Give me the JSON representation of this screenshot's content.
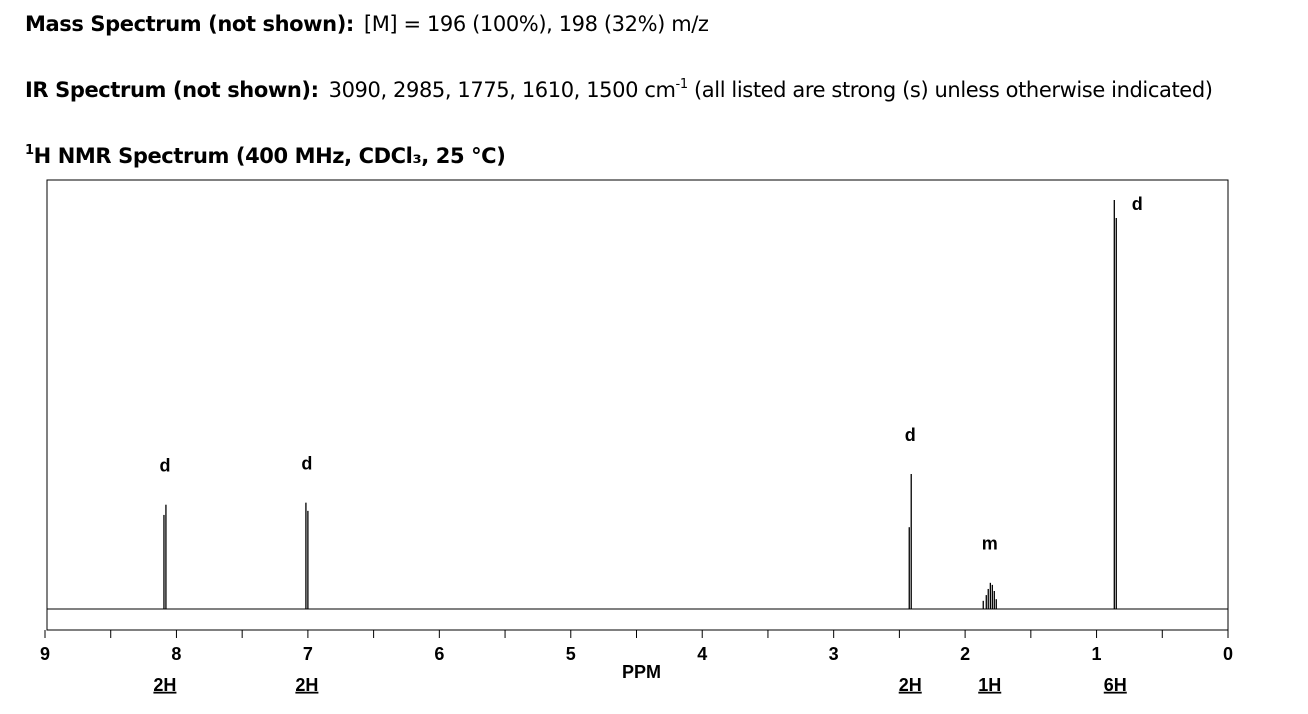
{
  "header": {
    "mass": {
      "label": "Mass Spectrum (not shown):",
      "text": "[M] = 196 (100%), 198 (32%) m/z"
    },
    "ir": {
      "label": "IR Spectrum (not shown):",
      "text": "3090, 2985, 1775, 1610, 1500 cm",
      "superscript": "-1",
      "note": "(all listed are strong (s) unless otherwise indicated)"
    }
  },
  "chart_data": {
    "type": "nmr",
    "title_superscript": "1",
    "title": "H NMR Spectrum (400 MHz, CDCl₃, 25 °C)",
    "x_label": "PPM",
    "xlim": [
      9,
      0
    ],
    "xticks": [
      9,
      8,
      7,
      6,
      5,
      4,
      3,
      2,
      1,
      0
    ],
    "minor_xticks": [
      8.5,
      7.5,
      6.5,
      5.5,
      4.5,
      3.5,
      2.5,
      1.5,
      0.5
    ],
    "ylim": [
      0,
      100
    ],
    "color": "#000000",
    "peaks": [
      {
        "multiplicity": "d",
        "integration": "2H",
        "lines": [
          {
            "ppm": 8.095,
            "height": 23
          },
          {
            "ppm": 8.08,
            "height": 25.5
          }
        ]
      },
      {
        "multiplicity": "d",
        "integration": "2H",
        "lines": [
          {
            "ppm": 7.015,
            "height": 26
          },
          {
            "ppm": 7.0,
            "height": 24
          }
        ]
      },
      {
        "multiplicity": "d",
        "integration": "2H",
        "lines": [
          {
            "ppm": 2.425,
            "height": 20
          },
          {
            "ppm": 2.41,
            "height": 33
          }
        ]
      },
      {
        "multiplicity": "m",
        "integration": "1H",
        "lines": [
          {
            "ppm": 1.862,
            "height": 2
          },
          {
            "ppm": 1.839,
            "height": 3.4
          },
          {
            "ppm": 1.824,
            "height": 4.9
          },
          {
            "ppm": 1.808,
            "height": 6.4
          },
          {
            "ppm": 1.793,
            "height": 5.9
          },
          {
            "ppm": 1.778,
            "height": 4.4
          },
          {
            "ppm": 1.763,
            "height": 2.4
          }
        ]
      },
      {
        "multiplicity": "d",
        "integration": "6H",
        "lines": [
          {
            "ppm": 0.865,
            "height": 100
          },
          {
            "ppm": 0.85,
            "height": 95.6
          }
        ]
      }
    ]
  }
}
